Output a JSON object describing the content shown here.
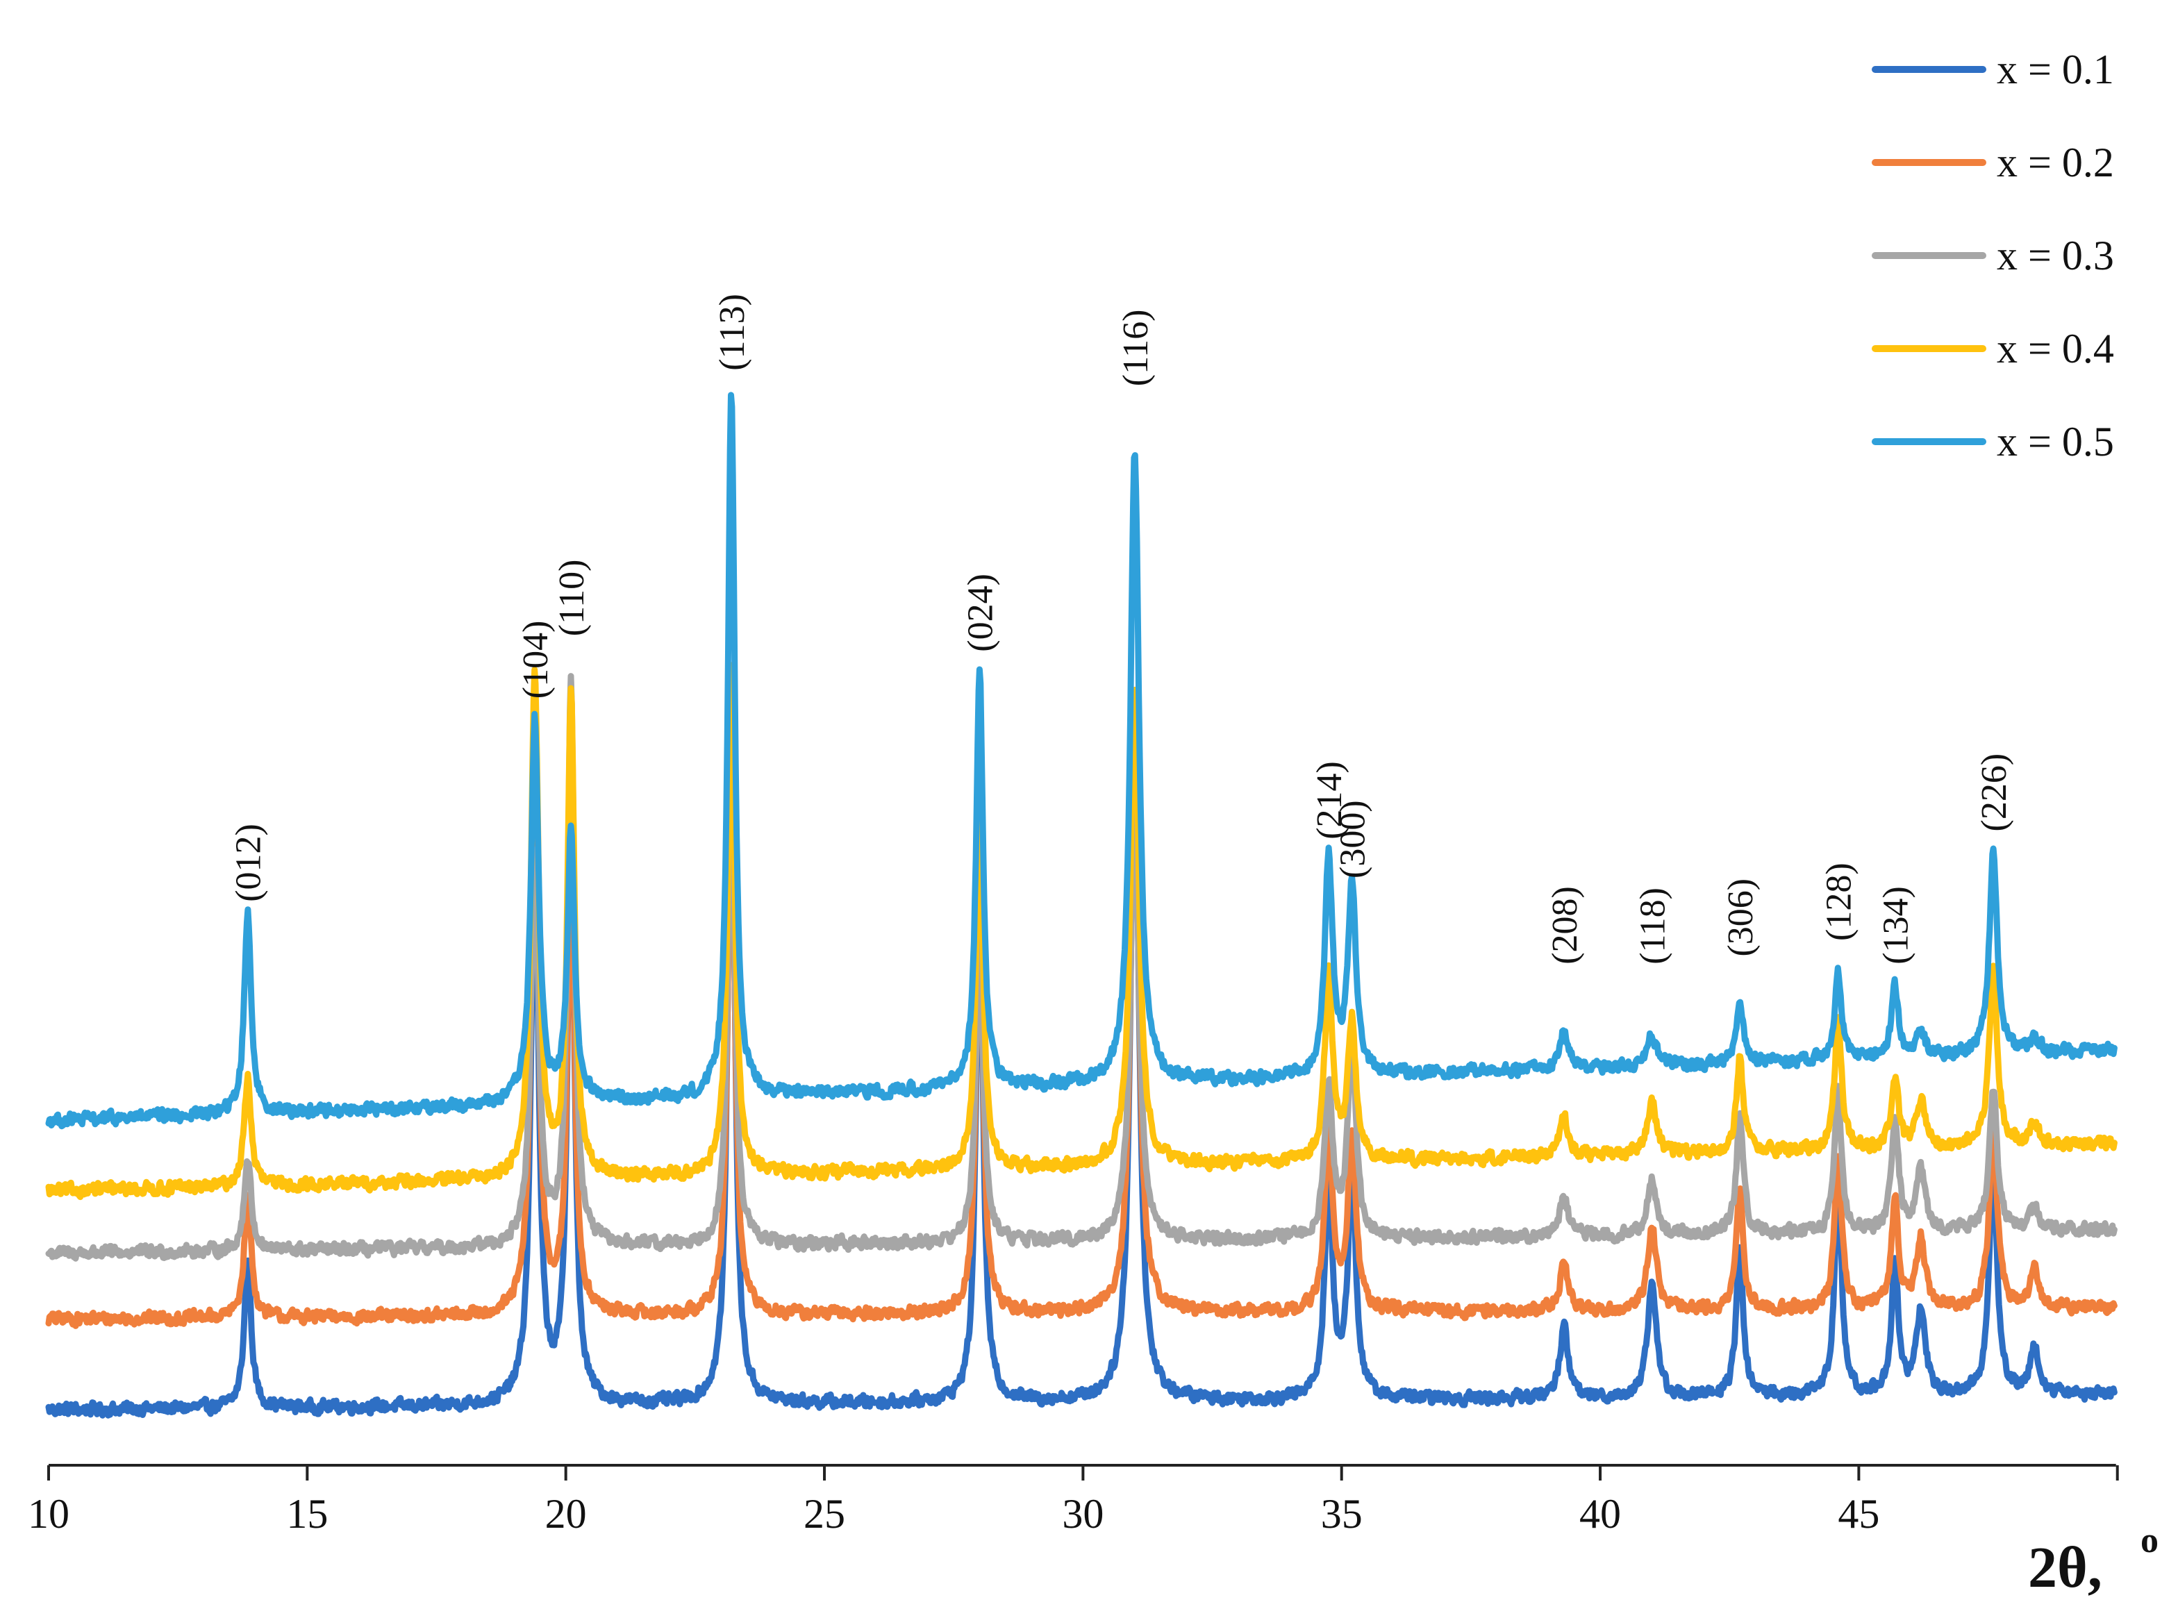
{
  "chart_data": {
    "type": "line",
    "title": "",
    "xlabel": "2θ,",
    "xlabel_unit": "o",
    "ylabel": "",
    "xlim": [
      10,
      50
    ],
    "x_ticks": [
      10,
      15,
      20,
      25,
      30,
      35,
      40,
      45
    ],
    "y_ticks_shown": false,
    "grid": false,
    "legend_position": "top-right",
    "stacked_offset_traces": true,
    "noise_amplitude": 0.035,
    "series": [
      {
        "name": "x = 0.1",
        "color": "#2E6FC4",
        "baseline_start": 0.0,
        "baseline_end": 0.1,
        "peaks": [
          [
            13.85,
            0.95,
            0.08
          ],
          [
            19.4,
            3.6,
            0.09
          ],
          [
            20.1,
            3.85,
            0.08
          ],
          [
            23.2,
            4.6,
            0.08
          ],
          [
            28.0,
            3.4,
            0.08
          ],
          [
            31.0,
            4.35,
            0.1
          ],
          [
            34.75,
            1.4,
            0.09
          ],
          [
            35.2,
            1.5,
            0.09
          ],
          [
            39.3,
            0.45,
            0.1
          ],
          [
            41.0,
            0.75,
            0.1
          ],
          [
            42.7,
            0.95,
            0.08
          ],
          [
            44.6,
            1.4,
            0.08
          ],
          [
            45.7,
            0.85,
            0.08
          ],
          [
            46.2,
            0.55,
            0.1
          ],
          [
            47.6,
            1.5,
            0.09
          ],
          [
            48.4,
            0.3,
            0.1
          ]
        ]
      },
      {
        "name": "x = 0.2",
        "color": "#F07F3C",
        "baseline_start": 0.58,
        "baseline_end": 0.65,
        "peaks": [
          [
            13.85,
            0.8,
            0.08
          ],
          [
            19.4,
            3.3,
            0.09
          ],
          [
            20.1,
            3.0,
            0.08
          ],
          [
            23.2,
            3.55,
            0.08
          ],
          [
            28.0,
            2.75,
            0.08
          ],
          [
            31.0,
            3.5,
            0.1
          ],
          [
            34.75,
            1.15,
            0.09
          ],
          [
            35.2,
            1.15,
            0.09
          ],
          [
            39.3,
            0.3,
            0.1
          ],
          [
            41.0,
            0.55,
            0.1
          ],
          [
            42.7,
            0.75,
            0.08
          ],
          [
            44.6,
            1.0,
            0.08
          ],
          [
            45.7,
            0.7,
            0.08
          ],
          [
            46.2,
            0.45,
            0.1
          ],
          [
            47.6,
            1.2,
            0.09
          ],
          [
            48.4,
            0.25,
            0.1
          ]
        ]
      },
      {
        "name": "x = 0.3",
        "color": "#A6A6A6",
        "baseline_start": 1.0,
        "baseline_end": 1.15,
        "peaks": [
          [
            13.85,
            0.6,
            0.08
          ],
          [
            19.4,
            2.5,
            0.09
          ],
          [
            20.1,
            3.6,
            0.08
          ],
          [
            23.2,
            3.1,
            0.08
          ],
          [
            28.0,
            2.1,
            0.08
          ],
          [
            31.0,
            2.8,
            0.1
          ],
          [
            34.75,
            1.0,
            0.09
          ],
          [
            35.2,
            1.3,
            0.09
          ],
          [
            39.3,
            0.25,
            0.1
          ],
          [
            41.0,
            0.35,
            0.1
          ],
          [
            42.7,
            0.75,
            0.08
          ],
          [
            44.6,
            0.9,
            0.08
          ],
          [
            45.7,
            0.75,
            0.08
          ],
          [
            46.2,
            0.4,
            0.1
          ],
          [
            47.6,
            0.9,
            0.09
          ],
          [
            48.4,
            0.15,
            0.1
          ]
        ]
      },
      {
        "name": "x = 0.4",
        "color": "#FFC20E",
        "baseline_start": 1.4,
        "baseline_end": 1.7,
        "peaks": [
          [
            13.85,
            0.7,
            0.08
          ],
          [
            19.4,
            3.2,
            0.09
          ],
          [
            20.1,
            3.1,
            0.08
          ],
          [
            23.2,
            3.3,
            0.08
          ],
          [
            28.0,
            2.35,
            0.08
          ],
          [
            31.0,
            3.1,
            0.1
          ],
          [
            34.75,
            1.2,
            0.09
          ],
          [
            35.2,
            0.9,
            0.09
          ],
          [
            39.3,
            0.25,
            0.1
          ],
          [
            41.0,
            0.35,
            0.1
          ],
          [
            42.7,
            0.6,
            0.08
          ],
          [
            44.6,
            0.85,
            0.08
          ],
          [
            45.7,
            0.45,
            0.08
          ],
          [
            46.2,
            0.3,
            0.1
          ],
          [
            47.6,
            1.15,
            0.09
          ],
          [
            48.4,
            0.15,
            0.1
          ]
        ]
      },
      {
        "name": "x = 0.5",
        "color": "#2FA0DA",
        "baseline_start": 1.85,
        "baseline_end": 2.3,
        "peaks": [
          [
            13.85,
            1.3,
            0.08
          ],
          [
            19.4,
            2.45,
            0.09
          ],
          [
            20.1,
            1.75,
            0.08
          ],
          [
            23.2,
            4.5,
            0.08
          ],
          [
            28.0,
            2.7,
            0.08
          ],
          [
            31.0,
            4.05,
            0.1
          ],
          [
            34.75,
            1.4,
            0.09
          ],
          [
            35.2,
            1.25,
            0.09
          ],
          [
            39.3,
            0.25,
            0.1
          ],
          [
            41.0,
            0.2,
            0.1
          ],
          [
            42.7,
            0.4,
            0.08
          ],
          [
            44.6,
            0.55,
            0.08
          ],
          [
            45.7,
            0.45,
            0.08
          ],
          [
            46.2,
            0.15,
            0.1
          ],
          [
            47.6,
            1.3,
            0.09
          ],
          [
            48.4,
            0.1,
            0.1
          ]
        ]
      }
    ],
    "peak_labels": [
      {
        "label": "(012)",
        "x": 13.85,
        "y": 3.25
      },
      {
        "label": "(104)",
        "x": 19.4,
        "y": 4.55
      },
      {
        "label": "(110)",
        "x": 20.1,
        "y": 4.95
      },
      {
        "label": "(113)",
        "x": 23.2,
        "y": 6.65
      },
      {
        "label": "(024)",
        "x": 28.0,
        "y": 4.85
      },
      {
        "label": "(116)",
        "x": 31.0,
        "y": 6.55
      },
      {
        "label": "(214)",
        "x": 34.75,
        "y": 3.65
      },
      {
        "label": "(300)",
        "x": 35.2,
        "y": 3.4
      },
      {
        "label": "(208)",
        "x": 39.3,
        "y": 2.85
      },
      {
        "label": "(118)",
        "x": 41.0,
        "y": 2.85
      },
      {
        "label": "(306)",
        "x": 42.7,
        "y": 2.9
      },
      {
        "label": "(128)",
        "x": 44.6,
        "y": 3.0
      },
      {
        "label": "(134)",
        "x": 45.7,
        "y": 2.85
      },
      {
        "label": "(226)",
        "x": 47.6,
        "y": 3.7
      }
    ]
  }
}
